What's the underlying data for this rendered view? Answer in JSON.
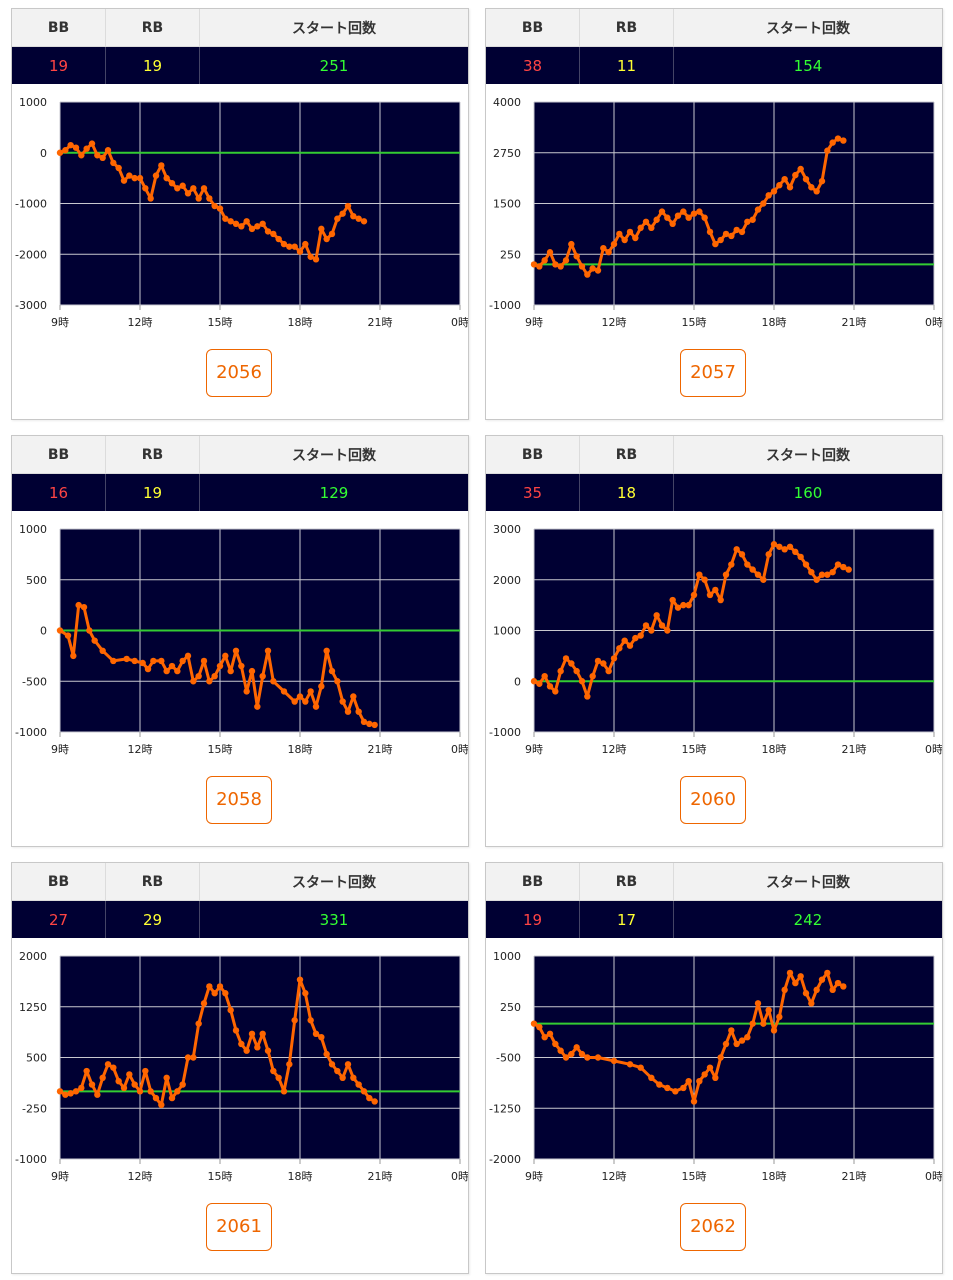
{
  "headers": {
    "bb": "BB",
    "rb": "RB",
    "start": "スタート回数"
  },
  "colors": {
    "plot_bg": "#000033",
    "series": "#ff6600",
    "zero_line": "#33cc33",
    "grid": "#c8c8d0",
    "button": "#ee6600"
  },
  "machines": [
    {
      "number": "2056",
      "bb": "19",
      "rb": "19",
      "start": "251"
    },
    {
      "number": "2057",
      "bb": "38",
      "rb": "11",
      "start": "154"
    },
    {
      "number": "2058",
      "bb": "16",
      "rb": "19",
      "start": "129"
    },
    {
      "number": "2060",
      "bb": "35",
      "rb": "18",
      "start": "160"
    },
    {
      "number": "2061",
      "bb": "27",
      "rb": "29",
      "start": "331"
    },
    {
      "number": "2062",
      "bb": "19",
      "rb": "17",
      "start": "242"
    }
  ],
  "chart_data": [
    {
      "type": "line",
      "categories": [
        "9時",
        "12時",
        "15時",
        "18時",
        "21時",
        "0時"
      ],
      "xlim": [
        9,
        24
      ],
      "ylim": [
        -3000,
        1000
      ],
      "yticks": [
        1000,
        0,
        -1000,
        -2000,
        -3000
      ],
      "ytick_labels": [
        "1000",
        "0",
        "-1000",
        "-2000",
        "-3000"
      ],
      "reference_line": 0,
      "x": [
        9.0,
        9.2,
        9.4,
        9.6,
        9.8,
        10.0,
        10.2,
        10.4,
        10.6,
        10.8,
        11.0,
        11.2,
        11.4,
        11.6,
        11.8,
        12.0,
        12.2,
        12.4,
        12.6,
        12.8,
        13.0,
        13.2,
        13.4,
        13.6,
        13.8,
        14.0,
        14.2,
        14.4,
        14.6,
        14.8,
        15.0,
        15.2,
        15.4,
        15.6,
        15.8,
        16.0,
        16.2,
        16.4,
        16.6,
        16.8,
        17.0,
        17.2,
        17.4,
        17.6,
        17.8,
        18.0,
        18.2,
        18.4,
        18.6,
        18.8,
        19.0,
        19.2,
        19.4,
        19.6,
        19.8,
        20.0,
        20.2,
        20.4
      ],
      "y": [
        0,
        50,
        150,
        100,
        -50,
        80,
        180,
        -50,
        -100,
        50,
        -200,
        -300,
        -550,
        -450,
        -500,
        -500,
        -700,
        -900,
        -450,
        -250,
        -500,
        -600,
        -700,
        -650,
        -800,
        -700,
        -900,
        -700,
        -900,
        -1050,
        -1100,
        -1300,
        -1350,
        -1400,
        -1450,
        -1350,
        -1500,
        -1450,
        -1400,
        -1550,
        -1600,
        -1700,
        -1800,
        -1850,
        -1850,
        -1950,
        -1800,
        -2050,
        -2100,
        -1500,
        -1700,
        -1600,
        -1300,
        -1200,
        -1050,
        -1250,
        -1300,
        -1350
      ]
    },
    {
      "type": "line",
      "categories": [
        "9時",
        "12時",
        "15時",
        "18時",
        "21時",
        "0時"
      ],
      "xlim": [
        9,
        24
      ],
      "ylim": [
        -1000,
        4000
      ],
      "yticks": [
        4000,
        2750,
        1500,
        250,
        -1000
      ],
      "ytick_labels": [
        "4000",
        "2750",
        "1500",
        "250",
        "-1000"
      ],
      "reference_line": 0,
      "x": [
        9.0,
        9.2,
        9.4,
        9.6,
        9.8,
        10.0,
        10.2,
        10.4,
        10.6,
        10.8,
        11.0,
        11.2,
        11.4,
        11.6,
        11.8,
        12.0,
        12.2,
        12.4,
        12.6,
        12.8,
        13.0,
        13.2,
        13.4,
        13.6,
        13.8,
        14.0,
        14.2,
        14.4,
        14.6,
        14.8,
        15.0,
        15.2,
        15.4,
        15.6,
        15.8,
        16.0,
        16.2,
        16.4,
        16.6,
        16.8,
        17.0,
        17.2,
        17.4,
        17.6,
        17.8,
        18.0,
        18.2,
        18.4,
        18.6,
        18.8,
        19.0,
        19.2,
        19.4,
        19.6,
        19.8,
        20.0,
        20.2,
        20.4,
        20.6
      ],
      "y": [
        0,
        -50,
        100,
        300,
        0,
        -50,
        100,
        500,
        200,
        -50,
        -250,
        -100,
        -150,
        400,
        300,
        500,
        750,
        600,
        800,
        650,
        900,
        1050,
        900,
        1100,
        1300,
        1150,
        1000,
        1200,
        1300,
        1150,
        1250,
        1300,
        1150,
        800,
        500,
        600,
        750,
        700,
        850,
        800,
        1050,
        1100,
        1350,
        1500,
        1700,
        1800,
        1950,
        2100,
        1900,
        2200,
        2350,
        2100,
        1900,
        1800,
        2050,
        2800,
        3000,
        3100,
        3050
      ]
    },
    {
      "type": "line",
      "categories": [
        "9時",
        "12時",
        "15時",
        "18時",
        "21時",
        "0時"
      ],
      "xlim": [
        9,
        24
      ],
      "ylim": [
        -1000,
        1000
      ],
      "yticks": [
        1000,
        500,
        0,
        -500,
        -1000
      ],
      "ytick_labels": [
        "1000",
        "500",
        "0",
        "-500",
        "-1000"
      ],
      "reference_line": 0,
      "x": [
        9.0,
        9.3,
        9.5,
        9.7,
        9.9,
        10.1,
        10.3,
        10.6,
        11.0,
        11.5,
        11.8,
        12.1,
        12.3,
        12.5,
        12.8,
        13.0,
        13.2,
        13.4,
        13.6,
        13.8,
        14.0,
        14.2,
        14.4,
        14.6,
        14.8,
        15.0,
        15.2,
        15.4,
        15.6,
        15.8,
        16.0,
        16.2,
        16.4,
        16.6,
        16.8,
        17.0,
        17.4,
        17.8,
        18.0,
        18.2,
        18.4,
        18.6,
        18.8,
        19.0,
        19.2,
        19.4,
        19.6,
        19.8,
        20.0,
        20.2,
        20.4,
        20.6,
        20.8
      ],
      "y": [
        0,
        -50,
        -250,
        250,
        230,
        0,
        -100,
        -200,
        -300,
        -280,
        -300,
        -320,
        -380,
        -300,
        -300,
        -400,
        -350,
        -400,
        -300,
        -250,
        -500,
        -450,
        -300,
        -500,
        -450,
        -350,
        -250,
        -400,
        -200,
        -350,
        -600,
        -400,
        -750,
        -450,
        -200,
        -500,
        -600,
        -700,
        -650,
        -700,
        -600,
        -750,
        -550,
        -200,
        -400,
        -500,
        -700,
        -800,
        -650,
        -800,
        -900,
        -920,
        -930
      ]
    },
    {
      "type": "line",
      "categories": [
        "9時",
        "12時",
        "15時",
        "18時",
        "21時",
        "0時"
      ],
      "xlim": [
        9,
        24
      ],
      "ylim": [
        -1000,
        3000
      ],
      "yticks": [
        3000,
        2000,
        1000,
        0,
        -1000
      ],
      "ytick_labels": [
        "3000",
        "2000",
        "1000",
        "0",
        "-1000"
      ],
      "reference_line": 0,
      "x": [
        9.0,
        9.2,
        9.4,
        9.6,
        9.8,
        10.0,
        10.2,
        10.4,
        10.6,
        10.8,
        11.0,
        11.2,
        11.4,
        11.6,
        11.8,
        12.0,
        12.2,
        12.4,
        12.6,
        12.8,
        13.0,
        13.2,
        13.4,
        13.6,
        13.8,
        14.0,
        14.2,
        14.4,
        14.6,
        14.8,
        15.0,
        15.2,
        15.4,
        15.6,
        15.8,
        16.0,
        16.2,
        16.4,
        16.6,
        16.8,
        17.0,
        17.2,
        17.4,
        17.6,
        17.8,
        18.0,
        18.2,
        18.4,
        18.6,
        18.8,
        19.0,
        19.2,
        19.4,
        19.6,
        19.8,
        20.0,
        20.2,
        20.4,
        20.6,
        20.8
      ],
      "y": [
        0,
        -50,
        100,
        -100,
        -200,
        200,
        450,
        350,
        200,
        0,
        -300,
        100,
        400,
        350,
        200,
        450,
        650,
        800,
        700,
        850,
        900,
        1100,
        1000,
        1300,
        1100,
        1000,
        1600,
        1450,
        1500,
        1500,
        1700,
        2100,
        2000,
        1700,
        1800,
        1600,
        2100,
        2300,
        2600,
        2500,
        2300,
        2200,
        2100,
        2000,
        2500,
        2700,
        2650,
        2600,
        2650,
        2550,
        2450,
        2300,
        2150,
        2000,
        2100,
        2100,
        2150,
        2300,
        2250,
        2200
      ]
    },
    {
      "type": "line",
      "categories": [
        "9時",
        "12時",
        "15時",
        "18時",
        "21時",
        "0時"
      ],
      "xlim": [
        9,
        24
      ],
      "ylim": [
        -1000,
        2000
      ],
      "yticks": [
        2000,
        1250,
        500,
        -250,
        -1000
      ],
      "ytick_labels": [
        "2000",
        "1250",
        "500",
        "-250",
        "-1000"
      ],
      "reference_line": 0,
      "x": [
        9.0,
        9.2,
        9.4,
        9.6,
        9.8,
        10.0,
        10.2,
        10.4,
        10.6,
        10.8,
        11.0,
        11.2,
        11.4,
        11.6,
        11.8,
        12.0,
        12.2,
        12.4,
        12.6,
        12.8,
        13.0,
        13.2,
        13.4,
        13.6,
        13.8,
        14.0,
        14.2,
        14.4,
        14.6,
        14.8,
        15.0,
        15.2,
        15.4,
        15.6,
        15.8,
        16.0,
        16.2,
        16.4,
        16.6,
        16.8,
        17.0,
        17.2,
        17.4,
        17.6,
        17.8,
        18.0,
        18.2,
        18.4,
        18.6,
        18.8,
        19.0,
        19.2,
        19.4,
        19.6,
        19.8,
        20.0,
        20.2,
        20.4,
        20.6,
        20.8
      ],
      "y": [
        0,
        -50,
        -30,
        0,
        50,
        300,
        100,
        -50,
        200,
        400,
        350,
        150,
        50,
        250,
        100,
        0,
        300,
        0,
        -100,
        -200,
        200,
        -100,
        0,
        100,
        500,
        500,
        1000,
        1300,
        1550,
        1450,
        1550,
        1450,
        1200,
        900,
        700,
        600,
        850,
        650,
        850,
        600,
        300,
        200,
        0,
        400,
        1050,
        1650,
        1450,
        1050,
        850,
        800,
        550,
        400,
        300,
        200,
        400,
        200,
        100,
        0,
        -100,
        -150
      ]
    },
    {
      "type": "line",
      "categories": [
        "9時",
        "12時",
        "15時",
        "18時",
        "21時",
        "0時"
      ],
      "xlim": [
        9,
        24
      ],
      "ylim": [
        -2000,
        1000
      ],
      "yticks": [
        1000,
        250,
        -500,
        -1250,
        -2000
      ],
      "ytick_labels": [
        "1000",
        "250",
        "-500",
        "-1250",
        "-2000"
      ],
      "reference_line": 0,
      "x": [
        9.0,
        9.2,
        9.4,
        9.6,
        9.8,
        10.0,
        10.2,
        10.4,
        10.6,
        10.8,
        11.0,
        11.4,
        12.0,
        12.6,
        13.0,
        13.4,
        13.7,
        14.0,
        14.3,
        14.6,
        14.8,
        15.0,
        15.2,
        15.4,
        15.6,
        15.8,
        16.0,
        16.2,
        16.4,
        16.6,
        16.8,
        17.0,
        17.2,
        17.4,
        17.6,
        17.8,
        18.0,
        18.2,
        18.4,
        18.6,
        18.8,
        19.0,
        19.2,
        19.4,
        19.6,
        19.8,
        20.0,
        20.2,
        20.4,
        20.6
      ],
      "y": [
        0,
        -50,
        -200,
        -150,
        -300,
        -400,
        -500,
        -450,
        -350,
        -450,
        -500,
        -500,
        -550,
        -600,
        -650,
        -800,
        -900,
        -950,
        -1000,
        -950,
        -850,
        -1150,
        -850,
        -750,
        -650,
        -800,
        -500,
        -300,
        -100,
        -300,
        -250,
        -200,
        0,
        300,
        0,
        200,
        -100,
        100,
        500,
        750,
        600,
        700,
        450,
        300,
        500,
        650,
        750,
        500,
        600,
        550
      ]
    }
  ]
}
